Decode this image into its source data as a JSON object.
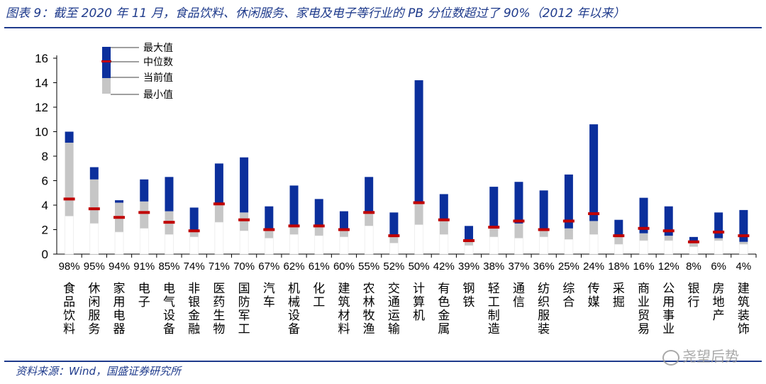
{
  "header": {
    "title": "图表 9：截至 2020 年 11 月，食品饮料、休闲服务、家电及电子等行业的 PB 分位数超过了 90%（2012 年以来）"
  },
  "footer": {
    "source": "资料来源：Wind，国盛证券研究所"
  },
  "watermark": {
    "text": "尧望后势"
  },
  "colors": {
    "upper_bar": "#0b2f9c",
    "lower_bar": "#c6c6c6",
    "median_mark": "#c00000",
    "title_text": "#1f3b8c"
  },
  "chart_data": {
    "type": "bar",
    "subtype": "floating-range",
    "ylim": [
      0,
      16
    ],
    "yticks": [
      0,
      2,
      4,
      6,
      8,
      10,
      12,
      14,
      16
    ],
    "legend": {
      "position": "top-left",
      "entries": [
        "最大值",
        "中位数",
        "当前值",
        "最小值"
      ]
    },
    "categories": [
      "食品饮料",
      "休闲服务",
      "家用电器",
      "电子",
      "电气设备",
      "非银金融",
      "医药生物",
      "国防军工",
      "汽车",
      "机械设备",
      "化工",
      "建筑材料",
      "农林牧渔",
      "交通运输",
      "计算机",
      "有色金属",
      "钢铁",
      "轻工制造",
      "通信",
      "纺织服装",
      "综合",
      "传媒",
      "采掘",
      "商业贸易",
      "公用事业",
      "银行",
      "房地产",
      "建筑装饰"
    ],
    "percentiles": [
      "98%",
      "95%",
      "94%",
      "91%",
      "85%",
      "74%",
      "71%",
      "70%",
      "67%",
      "62%",
      "61%",
      "60%",
      "55%",
      "52%",
      "50%",
      "42%",
      "39%",
      "38%",
      "37%",
      "36%",
      "25%",
      "24%",
      "18%",
      "16%",
      "12%",
      "8%",
      "6%",
      "4%"
    ],
    "series": [
      {
        "name": "最大值",
        "values": [
          10.0,
          7.1,
          4.4,
          6.1,
          6.3,
          3.8,
          7.4,
          7.9,
          3.9,
          5.6,
          4.5,
          3.5,
          6.3,
          3.4,
          14.2,
          4.9,
          2.3,
          5.5,
          5.9,
          5.2,
          6.5,
          10.6,
          2.8,
          4.6,
          3.9,
          1.4,
          3.4,
          3.6
        ]
      },
      {
        "name": "中位数",
        "values": [
          4.5,
          3.7,
          3.0,
          3.4,
          2.6,
          1.9,
          4.1,
          2.8,
          2.0,
          2.3,
          2.3,
          2.0,
          3.4,
          1.5,
          4.2,
          2.8,
          1.1,
          2.2,
          2.7,
          2.0,
          2.7,
          3.3,
          1.5,
          2.1,
          1.9,
          1.0,
          1.8,
          1.5
        ]
      },
      {
        "name": "当前值",
        "values": [
          9.1,
          6.1,
          4.2,
          4.3,
          3.5,
          2.0,
          4.2,
          3.4,
          2.1,
          2.3,
          2.3,
          2.0,
          3.4,
          1.5,
          4.1,
          2.8,
          1.1,
          2.2,
          2.5,
          2.0,
          2.1,
          2.7,
          1.4,
          1.7,
          1.5,
          0.9,
          1.3,
          1.0
        ]
      },
      {
        "name": "最小值",
        "values": [
          3.1,
          2.5,
          1.8,
          2.1,
          1.6,
          1.4,
          2.6,
          1.9,
          1.3,
          1.6,
          1.5,
          1.4,
          2.3,
          0.9,
          2.4,
          1.6,
          0.7,
          1.4,
          1.3,
          1.4,
          1.2,
          1.6,
          0.8,
          1.1,
          1.1,
          0.6,
          1.1,
          0.8
        ]
      }
    ]
  }
}
